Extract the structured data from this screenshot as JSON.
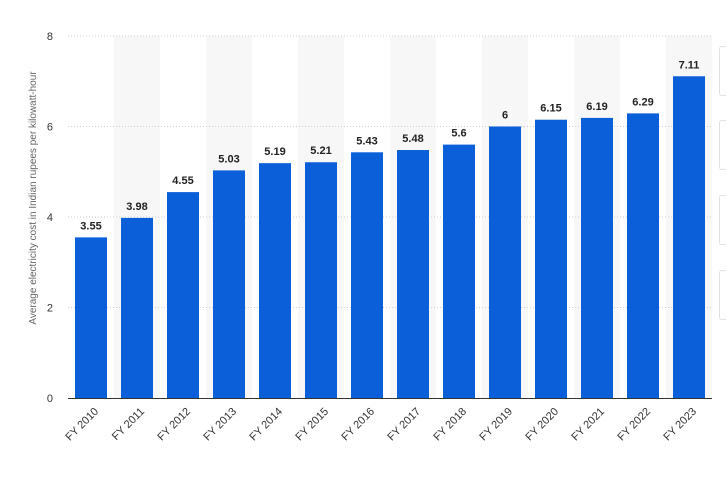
{
  "chart_data": {
    "type": "bar",
    "ylabel": "Average electricity cost in Indian rupees per kilowatt-hour",
    "xlabel": "",
    "ylim": [
      0,
      8
    ],
    "yticks": [
      0,
      2,
      4,
      6,
      8
    ],
    "grid": true,
    "legend": "none",
    "bar_color": "#0b5fd9",
    "categories": [
      "FY 2010",
      "FY 2011",
      "FY 2012",
      "FY 2013",
      "FY 2014",
      "FY 2015",
      "FY 2016",
      "FY 2017",
      "FY 2018",
      "FY 2019",
      "FY 2020",
      "FY 2021",
      "FY 2022",
      "FY 2023"
    ],
    "values": [
      3.55,
      3.98,
      4.55,
      5.03,
      5.19,
      5.21,
      5.43,
      5.48,
      5.6,
      6,
      6.15,
      6.19,
      6.29,
      7.11
    ],
    "value_labels": [
      "3.55",
      "3.98",
      "4.55",
      "5.03",
      "5.19",
      "5.21",
      "5.43",
      "5.48",
      "5.6",
      "6",
      "6.15",
      "6.19",
      "6.29",
      "7.11"
    ]
  }
}
